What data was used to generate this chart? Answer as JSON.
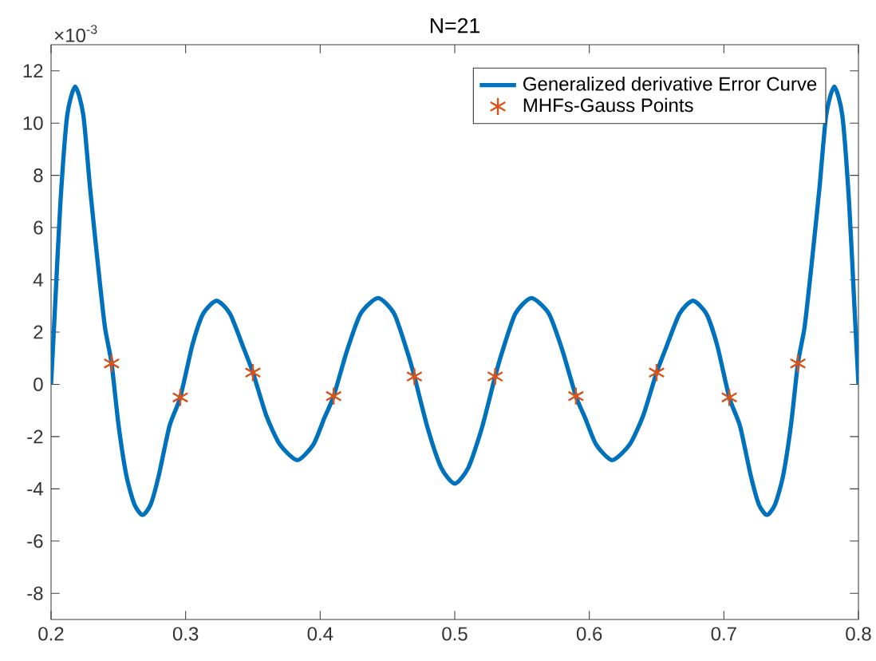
{
  "chart_data": {
    "type": "line",
    "title": "N=21",
    "annotations": [
      "×10$^{-3}$"
    ],
    "xlim": [
      0.2,
      0.8
    ],
    "xticks": [
      0.2,
      0.3,
      0.4,
      0.5,
      0.6,
      0.7,
      0.8
    ],
    "ylim": [
      -9,
      13
    ],
    "yticks": [
      -8,
      -6,
      -4,
      -2,
      0,
      2,
      4,
      6,
      8,
      10,
      12
    ],
    "grid": false,
    "legend": "top right",
    "series": [
      {
        "name": "Generalized derivative Error Curve",
        "color": "#0072bd",
        "type": "line",
        "marker": "none",
        "line_style": "solid",
        "x": [
          0.2,
          0.203,
          0.207,
          0.212,
          0.218,
          0.224,
          0.229,
          0.235,
          0.24,
          0.245,
          0.25,
          0.256,
          0.262,
          0.268,
          0.274,
          0.28,
          0.288,
          0.296,
          0.305,
          0.313,
          0.323,
          0.333,
          0.343,
          0.35,
          0.36,
          0.37,
          0.383,
          0.395,
          0.403,
          0.41,
          0.42,
          0.43,
          0.443,
          0.455,
          0.465,
          0.47,
          0.48,
          0.49,
          0.5,
          0.51,
          0.52,
          0.53,
          0.535,
          0.545,
          0.557,
          0.57,
          0.58,
          0.59,
          0.597,
          0.605,
          0.617,
          0.63,
          0.64,
          0.65,
          0.657,
          0.667,
          0.677,
          0.687,
          0.695,
          0.704,
          0.712,
          0.72,
          0.726,
          0.732,
          0.738,
          0.744,
          0.75,
          0.755,
          0.76,
          0.765,
          0.771,
          0.776,
          0.782,
          0.788,
          0.793,
          0.797,
          0.8
        ],
        "values": [
          0,
          3,
          7,
          10.3,
          11.4,
          10.3,
          7.5,
          4.5,
          2.2,
          0.8,
          -1.5,
          -3.5,
          -4.6,
          -5.0,
          -4.6,
          -3.5,
          -1.6,
          -0.5,
          1.5,
          2.7,
          3.2,
          2.7,
          1.4,
          0.45,
          -1.2,
          -2.3,
          -2.9,
          -2.3,
          -1.3,
          -0.45,
          1.3,
          2.7,
          3.3,
          2.7,
          1.2,
          0.3,
          -1.7,
          -3.2,
          -3.8,
          -3.2,
          -1.7,
          0.3,
          1.2,
          2.7,
          3.3,
          2.7,
          1.3,
          -0.45,
          -1.3,
          -2.3,
          -2.9,
          -2.3,
          -1.2,
          0.45,
          1.4,
          2.7,
          3.2,
          2.7,
          1.5,
          -0.5,
          -1.6,
          -3.5,
          -4.6,
          -5.0,
          -4.6,
          -3.5,
          -1.5,
          0.8,
          2.2,
          4.5,
          7.5,
          10.3,
          11.4,
          10.3,
          7,
          3,
          0
        ]
      },
      {
        "name": "MHFs-Gauss Points",
        "color": "#d95319",
        "type": "scatter",
        "marker": "cross",
        "x": [
          0.245,
          0.296,
          0.35,
          0.41,
          0.47,
          0.53,
          0.59,
          0.65,
          0.704,
          0.755
        ],
        "values": [
          0.8,
          -0.5,
          0.45,
          -0.45,
          0.3,
          0.3,
          -0.45,
          0.45,
          -0.5,
          0.8
        ]
      }
    ]
  }
}
